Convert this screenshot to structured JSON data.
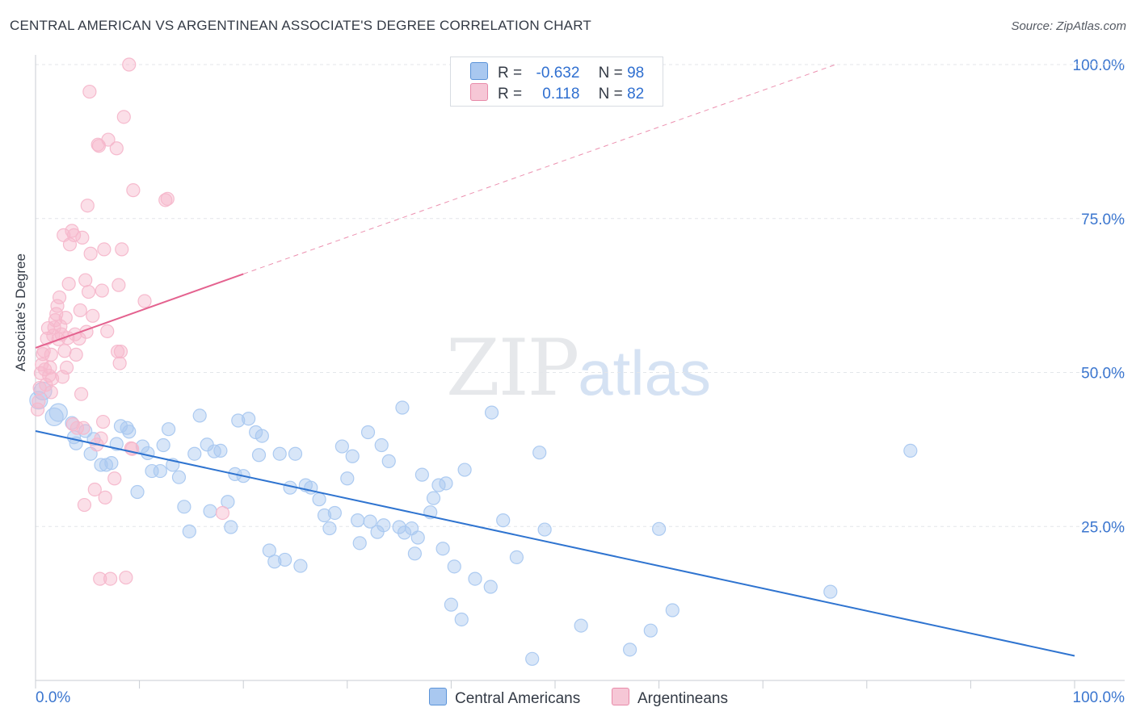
{
  "title": "CENTRAL AMERICAN VS ARGENTINEAN ASSOCIATE'S DEGREE CORRELATION CHART",
  "source": "Source: ZipAtlas.com",
  "watermark": {
    "zip": "ZIP",
    "atlas": "atlas"
  },
  "legend": {
    "rows": [
      {
        "r_label": "R =",
        "r_value": "-0.632",
        "n_label": "N =",
        "n_value": "98",
        "color": "#a9c8f0"
      },
      {
        "r_label": "R =",
        "r_value": "0.118",
        "n_label": "N =",
        "n_value": "82",
        "color": "#f6b7cb"
      }
    ]
  },
  "chart_data": {
    "type": "scatter",
    "title": "CENTRAL AMERICAN VS ARGENTINEAN ASSOCIATE'S DEGREE CORRELATION CHART",
    "xlabel": "",
    "ylabel": "Associate's Degree",
    "xlim": [
      0,
      100
    ],
    "ylim": [
      0,
      100
    ],
    "x_tick_labels": [
      "0.0%",
      "100.0%"
    ],
    "y_ticks": [
      25,
      50,
      75,
      100
    ],
    "y_tick_labels": [
      "25.0%",
      "50.0%",
      "75.0%",
      "100.0%"
    ],
    "grid": true,
    "series": [
      {
        "name": "Central Americans",
        "color": "#2f74d0",
        "fill": "#a9c8f0",
        "trend": {
          "x": [
            0,
            100
          ],
          "y": [
            40.5,
            4.0
          ],
          "dashed_extension": false
        },
        "points": [
          [
            0.3,
            45.5
          ],
          [
            0.7,
            47
          ],
          [
            1.8,
            42.8
          ],
          [
            2.2,
            43.5
          ],
          [
            3.5,
            41.8
          ],
          [
            3.7,
            39.5
          ],
          [
            3.9,
            38.5
          ],
          [
            4.8,
            40.5
          ],
          [
            5.3,
            36.8
          ],
          [
            5.6,
            39.2
          ],
          [
            6.3,
            35
          ],
          [
            6.8,
            35
          ],
          [
            7.3,
            35.3
          ],
          [
            7.8,
            38.4
          ],
          [
            8.2,
            41.3
          ],
          [
            8.8,
            41
          ],
          [
            9,
            40.4
          ],
          [
            9.8,
            30.6
          ],
          [
            10.3,
            38
          ],
          [
            10.8,
            36.9
          ],
          [
            11.2,
            34
          ],
          [
            12,
            34
          ],
          [
            12.3,
            38.2
          ],
          [
            12.8,
            40.8
          ],
          [
            13.2,
            35
          ],
          [
            13.8,
            33
          ],
          [
            14.3,
            28.2
          ],
          [
            14.8,
            24.2
          ],
          [
            15.3,
            36.8
          ],
          [
            15.8,
            43
          ],
          [
            16.5,
            38.3
          ],
          [
            16.8,
            27.5
          ],
          [
            17.2,
            37.2
          ],
          [
            17.8,
            37.3
          ],
          [
            18.8,
            24.9
          ],
          [
            18.5,
            29
          ],
          [
            19.2,
            33.5
          ],
          [
            19.5,
            42.2
          ],
          [
            20,
            33.2
          ],
          [
            20.5,
            42.5
          ],
          [
            21.2,
            40.3
          ],
          [
            21.5,
            36.6
          ],
          [
            21.8,
            39.7
          ],
          [
            22.5,
            21.1
          ],
          [
            23,
            19.3
          ],
          [
            23.5,
            36.8
          ],
          [
            24,
            19.6
          ],
          [
            24.5,
            31.3
          ],
          [
            25,
            36.8
          ],
          [
            25.5,
            18.6
          ],
          [
            26,
            31.7
          ],
          [
            26.5,
            31.3
          ],
          [
            27.3,
            29.4
          ],
          [
            27.8,
            26.8
          ],
          [
            28.3,
            24.7
          ],
          [
            28.8,
            27.2
          ],
          [
            29.5,
            38
          ],
          [
            30,
            32.8
          ],
          [
            30.5,
            36.4
          ],
          [
            31,
            26
          ],
          [
            31.2,
            22.3
          ],
          [
            32,
            40.3
          ],
          [
            32.2,
            25.8
          ],
          [
            32.9,
            24.1
          ],
          [
            33.3,
            38.2
          ],
          [
            33.5,
            25.2
          ],
          [
            34,
            35.6
          ],
          [
            35,
            24.9
          ],
          [
            35.5,
            24
          ],
          [
            35.3,
            44.3
          ],
          [
            36.2,
            24.7
          ],
          [
            36.8,
            23.2
          ],
          [
            36.5,
            20.6
          ],
          [
            37.2,
            33.4
          ],
          [
            38,
            27.3
          ],
          [
            38.3,
            29.6
          ],
          [
            38.8,
            31.7
          ],
          [
            39.2,
            21.4
          ],
          [
            39.5,
            32
          ],
          [
            40.3,
            18.5
          ],
          [
            40,
            12.3
          ],
          [
            41.3,
            34.2
          ],
          [
            41,
            9.9
          ],
          [
            42.3,
            16.5
          ],
          [
            43.8,
            15.2
          ],
          [
            43.9,
            43.5
          ],
          [
            45,
            26
          ],
          [
            46.3,
            20
          ],
          [
            47.8,
            3.5
          ],
          [
            48.5,
            37
          ],
          [
            49,
            24.5
          ],
          [
            52.5,
            8.9
          ],
          [
            57.2,
            5
          ],
          [
            59.2,
            8.1
          ],
          [
            60,
            24.6
          ],
          [
            61.3,
            11.4
          ],
          [
            76.5,
            14.4
          ],
          [
            84.2,
            37.3
          ]
        ]
      },
      {
        "name": "Argentineans",
        "color": "#e4628f",
        "fill": "#f6b7cb",
        "trend": {
          "x": [
            0,
            20
          ],
          "y": [
            54,
            66
          ],
          "dashed_extension": true,
          "dash_to": [
            77,
            100
          ]
        },
        "points": [
          [
            0.2,
            44
          ],
          [
            0.3,
            45.3
          ],
          [
            0.4,
            47.5
          ],
          [
            0.5,
            49.9
          ],
          [
            0.6,
            51.3
          ],
          [
            0.7,
            53
          ],
          [
            0.8,
            53.5
          ],
          [
            0.9,
            50.5
          ],
          [
            1,
            48
          ],
          [
            1.1,
            55.5
          ],
          [
            1.2,
            57.2
          ],
          [
            1.3,
            49.5
          ],
          [
            1.4,
            50.8
          ],
          [
            1.5,
            52.9
          ],
          [
            1.6,
            49
          ],
          [
            1.7,
            56
          ],
          [
            1.8,
            57.3
          ],
          [
            1.9,
            58.5
          ],
          [
            2,
            59.5
          ],
          [
            2.1,
            60.8
          ],
          [
            2.2,
            55.4
          ],
          [
            2.3,
            62.2
          ],
          [
            2.4,
            57.5
          ],
          [
            2.5,
            56.2
          ],
          [
            2.6,
            49.3
          ],
          [
            2.8,
            53.5
          ],
          [
            2.9,
            58.9
          ],
          [
            3,
            50.8
          ],
          [
            3.1,
            55.6
          ],
          [
            3.2,
            64.4
          ],
          [
            2.7,
            72.3
          ],
          [
            3.3,
            70.8
          ],
          [
            3.5,
            73
          ],
          [
            3.7,
            72.3
          ],
          [
            3.8,
            56.2
          ],
          [
            3.9,
            52.9
          ],
          [
            4,
            41
          ],
          [
            4.2,
            55.5
          ],
          [
            4.3,
            60.1
          ],
          [
            4.4,
            46.5
          ],
          [
            4.5,
            71.9
          ],
          [
            4.6,
            41
          ],
          [
            4.7,
            28.5
          ],
          [
            4.8,
            65
          ],
          [
            4.9,
            56.6
          ],
          [
            5,
            77.1
          ],
          [
            5.1,
            63.1
          ],
          [
            5.2,
            95.6
          ],
          [
            5.3,
            69.3
          ],
          [
            5.5,
            59.2
          ],
          [
            5.7,
            31
          ],
          [
            5.9,
            38.3
          ],
          [
            6,
            87
          ],
          [
            6.2,
            16.5
          ],
          [
            6.3,
            39.3
          ],
          [
            6.4,
            63.3
          ],
          [
            6.5,
            42
          ],
          [
            6.6,
            70
          ],
          [
            6.7,
            29.7
          ],
          [
            6.9,
            56.7
          ],
          [
            7,
            87.8
          ],
          [
            7.2,
            16.5
          ],
          [
            7.6,
            32.8
          ],
          [
            7.8,
            86.4
          ],
          [
            7.9,
            53.4
          ],
          [
            8,
            64.2
          ],
          [
            8.1,
            51.5
          ],
          [
            8.2,
            53.4
          ],
          [
            8.5,
            91.5
          ],
          [
            8.7,
            16.7
          ],
          [
            9,
            100
          ],
          [
            9.2,
            37.7
          ],
          [
            9.3,
            37.6
          ],
          [
            9.4,
            79.6
          ],
          [
            10.5,
            61.6
          ],
          [
            12.5,
            78
          ],
          [
            12.7,
            78.2
          ],
          [
            18,
            27.2
          ],
          [
            8.3,
            70
          ],
          [
            6.1,
            86.8
          ],
          [
            1.5,
            46.8
          ],
          [
            3.6,
            41.6
          ]
        ]
      }
    ]
  }
}
